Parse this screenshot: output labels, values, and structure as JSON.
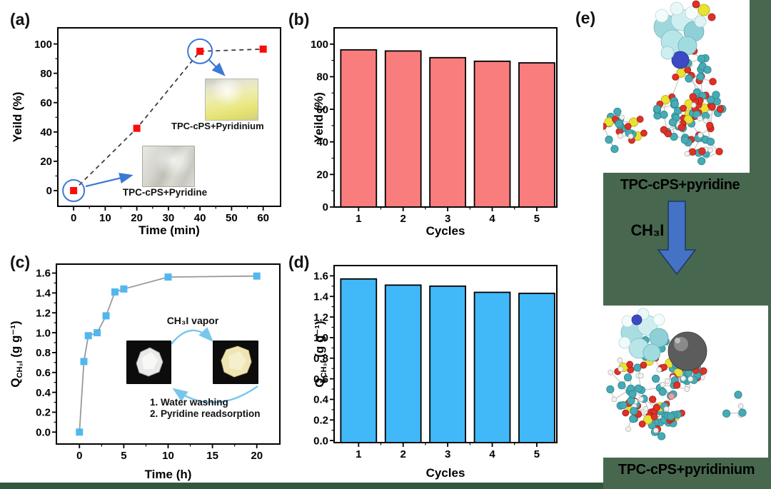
{
  "panels": {
    "a": {
      "tag": "(a)",
      "insets": {
        "pyridinium_caption": "TPC-cPS+Pyridinium",
        "pyridine_caption": "TPC-cPS+Pyridine"
      }
    },
    "b": {
      "tag": "(b)"
    },
    "c": {
      "tag": "(c)",
      "insets": {
        "vapor_label": "CH₃I vapor",
        "step1": "1. Water washing",
        "step2": "2. Pyridine readsorption"
      }
    },
    "d": {
      "tag": "(d)"
    },
    "e": {
      "tag": "(e)",
      "top_caption": "TPC-cPS+pyridine",
      "arrow_label": "CH₃I",
      "bottom_caption": "TPC-cPS+pyridinium"
    }
  },
  "colors": {
    "background_green": "#47684f",
    "bottom_strip_green": "#33573e",
    "marker_red": "#f90d0c",
    "marker_blue": "#53b7ef",
    "bar_red": "#fa7d7d",
    "bar_blue": "#41b8f8",
    "annotation_blue": "#3b78d8",
    "cycle_arrow_blue": "#79c6ec",
    "block_arrow_blue": "#4472c4",
    "line_gray": "#999999",
    "dash_gray": "#3f3f3f"
  },
  "chart_data": [
    {
      "id": "a",
      "type": "line",
      "x": [
        0,
        20,
        40,
        60
      ],
      "y": [
        0,
        42.5,
        95,
        96.5
      ],
      "xlabel": "Time (min)",
      "ylabel": "Yeild (%)",
      "xticks": [
        0,
        10,
        20,
        30,
        40,
        50,
        60
      ],
      "xtick_labels": [
        "0",
        "10",
        "20",
        "30",
        "40",
        "50",
        "60"
      ],
      "yticks": [
        0,
        20,
        40,
        60,
        80,
        100
      ],
      "ytick_labels": [
        "0",
        "20",
        "40",
        "60",
        "80",
        "100"
      ],
      "xlim": [
        -5,
        65.5
      ],
      "ylim": [
        -10.7,
        111
      ],
      "grid": false,
      "legend": null,
      "marker": "square",
      "marker_size": 10,
      "marker_color": "#f90d0c",
      "line_color": "#3f3f3f",
      "line_style": "dashed",
      "highlight_circles": [
        {
          "x": 0,
          "y": 0,
          "r": 15
        },
        {
          "x": 40,
          "y": 95,
          "r": 17
        }
      ],
      "highlight_color": "#3b78d8"
    },
    {
      "id": "b",
      "type": "bar",
      "categories": [
        "1",
        "2",
        "3",
        "4",
        "5"
      ],
      "values": [
        96.5,
        95.8,
        91.7,
        89.5,
        88.5
      ],
      "xlabel": "Cycles",
      "ylabel": "Yeild (%)",
      "yticks": [
        0,
        20,
        40,
        60,
        80,
        100
      ],
      "ytick_labels": [
        "0",
        "20",
        "40",
        "60",
        "80",
        "100"
      ],
      "ylim": [
        0,
        110
      ],
      "xlim": [
        0.45,
        5.45
      ],
      "grid": false,
      "bar_width": 0.8,
      "bar_color": "#fa7d7d",
      "bar_border": "#000000"
    },
    {
      "id": "c",
      "type": "line",
      "x": [
        0,
        0.5,
        1,
        2,
        3,
        4,
        5,
        10,
        20
      ],
      "y": [
        0,
        0.71,
        0.97,
        1.0,
        1.17,
        1.41,
        1.44,
        1.56,
        1.57
      ],
      "xlabel": "Time (h)",
      "ylabel": "Q_CH₃I (g g⁻¹)",
      "ylabel_segments": [
        {
          "t": "Q"
        },
        {
          "t": "CH₃I",
          "s": "sub"
        },
        {
          "t": " (g g⁻¹)"
        }
      ],
      "xticks": [
        0,
        5,
        10,
        15,
        20
      ],
      "xtick_labels": [
        "0",
        "5",
        "10",
        "15",
        "20"
      ],
      "yticks": [
        0,
        0.2,
        0.4,
        0.6,
        0.8,
        1.0,
        1.2,
        1.4,
        1.6
      ],
      "ytick_labels": [
        "0.0",
        "0.2",
        "0.4",
        "0.6",
        "0.8",
        "1.0",
        "1.2",
        "1.4",
        "1.6"
      ],
      "xlim": [
        -2.6,
        22.6
      ],
      "ylim": [
        -0.12,
        1.69
      ],
      "grid": false,
      "legend": null,
      "marker": "square",
      "marker_size": 10,
      "marker_color": "#53b7ef",
      "line_color": "#999999",
      "line_style": "solid"
    },
    {
      "id": "d",
      "type": "bar",
      "categories": [
        "1",
        "2",
        "3",
        "4",
        "5"
      ],
      "values": [
        1.57,
        1.51,
        1.5,
        1.44,
        1.43
      ],
      "xlabel": "Cycles",
      "ylabel": "Q_CH₃I (g g⁻¹)",
      "ylabel_segments": [
        {
          "t": "Q"
        },
        {
          "t": "CH₃I",
          "s": "sub"
        },
        {
          "t": " (g g⁻¹)"
        }
      ],
      "yticks": [
        0,
        0.2,
        0.4,
        0.6,
        0.8,
        1.0,
        1.2,
        1.4,
        1.6
      ],
      "ytick_labels": [
        "0.0",
        "0.2",
        "0.4",
        "0.6",
        "0.8",
        "1.0",
        "1.2",
        "1.4",
        "1.6"
      ],
      "ylim": [
        -0.02,
        1.7
      ],
      "xlim": [
        0.45,
        5.45
      ],
      "grid": false,
      "bar_width": 0.8,
      "bar_color": "#41b8f8",
      "bar_border": "#000000"
    }
  ]
}
